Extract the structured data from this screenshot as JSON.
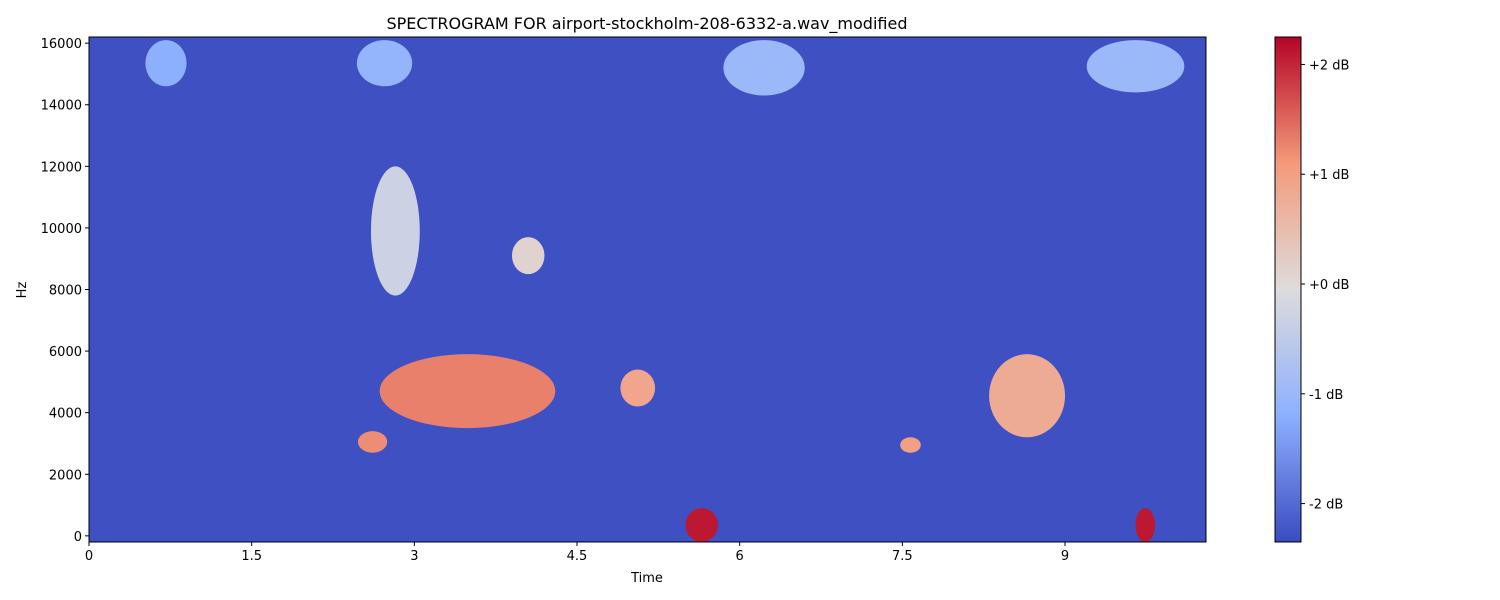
{
  "chart_data": {
    "type": "heatmap",
    "title": "SPECTROGRAM FOR airport-stockholm-208-6332-a.wav_modified",
    "xlabel": "Time",
    "ylabel": "Hz",
    "xlim": [
      0,
      10.3
    ],
    "ylim": [
      -200,
      16200
    ],
    "x_ticks": [
      0,
      1.5,
      3,
      4.5,
      6,
      7.5,
      9
    ],
    "x_tick_labels": [
      "0",
      "1.5",
      "3",
      "4.5",
      "6",
      "7.5",
      "9"
    ],
    "y_ticks": [
      0,
      2000,
      4000,
      6000,
      8000,
      10000,
      12000,
      14000,
      16000
    ],
    "y_tick_labels": [
      "0",
      "2000",
      "4000",
      "6000",
      "8000",
      "10000",
      "12000",
      "14000",
      "16000"
    ],
    "background_db": -2.3,
    "colorbar": {
      "colormap": "coolwarm",
      "range_db": [
        -2.35,
        2.25
      ],
      "ticks": [
        -2,
        -1,
        0,
        1,
        2
      ],
      "tick_labels": [
        "-2 dB",
        "-1 dB",
        "+0 dB",
        "+1 dB",
        "+2 dB"
      ]
    },
    "regions": [
      {
        "t": [
          0.52,
          0.9
        ],
        "f": [
          14600,
          16100
        ],
        "db": -1.2
      },
      {
        "t": [
          2.47,
          2.98
        ],
        "f": [
          14600,
          16100
        ],
        "db": -1.1
      },
      {
        "t": [
          5.85,
          6.6
        ],
        "f": [
          14300,
          16100
        ],
        "db": -1.0
      },
      {
        "t": [
          9.2,
          10.1
        ],
        "f": [
          14400,
          16100
        ],
        "db": -1.0
      },
      {
        "t": [
          2.6,
          3.05
        ],
        "f": [
          7800,
          12000
        ],
        "db": -0.3
      },
      {
        "t": [
          3.9,
          4.2
        ],
        "f": [
          8500,
          9700
        ],
        "db": 0.1
      },
      {
        "t": [
          2.68,
          4.3
        ],
        "f": [
          3500,
          5900
        ],
        "db": 1.3
      },
      {
        "t": [
          2.48,
          2.75
        ],
        "f": [
          2700,
          3400
        ],
        "db": 1.2
      },
      {
        "t": [
          4.9,
          5.22
        ],
        "f": [
          4200,
          5400
        ],
        "db": 0.9
      },
      {
        "t": [
          7.48,
          7.67
        ],
        "f": [
          2700,
          3200
        ],
        "db": 1.0
      },
      {
        "t": [
          8.3,
          9.0
        ],
        "f": [
          3200,
          5900
        ],
        "db": 0.8
      },
      {
        "t": [
          5.5,
          5.8
        ],
        "f": [
          -200,
          900
        ],
        "db": 2.1
      },
      {
        "t": [
          9.65,
          9.83
        ],
        "f": [
          -200,
          900
        ],
        "db": 2.1
      }
    ]
  }
}
